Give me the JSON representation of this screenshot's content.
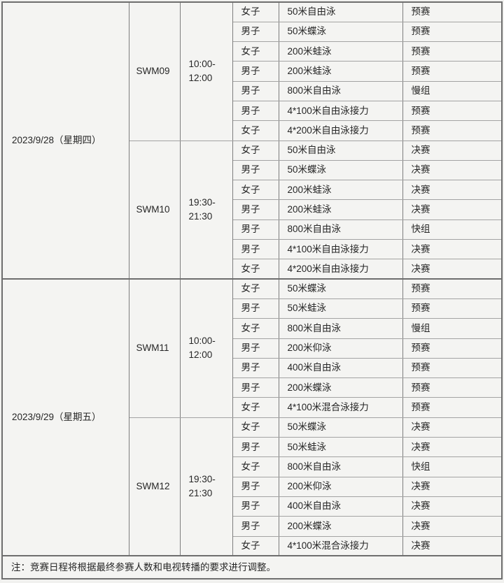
{
  "colors": {
    "page_background": "#f1f1ef",
    "cell_background": "#f4f4f2",
    "border_major": "#6e6e6e",
    "border_minor": "#a3a3a3",
    "text": "#262626"
  },
  "table": {
    "days": [
      {
        "date": "2023/9/28（星期四）",
        "sessions": [
          {
            "code": "SWM09",
            "time": "10:00-\n12:00",
            "events": [
              {
                "gender": "女子",
                "event": "50米自由泳",
                "round": "预赛"
              },
              {
                "gender": "男子",
                "event": "50米蝶泳",
                "round": "预赛"
              },
              {
                "gender": "女子",
                "event": "200米蛙泳",
                "round": "预赛"
              },
              {
                "gender": "男子",
                "event": "200米蛙泳",
                "round": "预赛"
              },
              {
                "gender": "男子",
                "event": "800米自由泳",
                "round": "慢组"
              },
              {
                "gender": "男子",
                "event": "4*100米自由泳接力",
                "round": "预赛"
              },
              {
                "gender": "女子",
                "event": "4*200米自由泳接力",
                "round": "预赛"
              }
            ]
          },
          {
            "code": "SWM10",
            "time": "19:30-\n21:30",
            "events": [
              {
                "gender": "女子",
                "event": "50米自由泳",
                "round": "决赛"
              },
              {
                "gender": "男子",
                "event": "50米蝶泳",
                "round": "决赛"
              },
              {
                "gender": "女子",
                "event": "200米蛙泳",
                "round": "决赛"
              },
              {
                "gender": "男子",
                "event": "200米蛙泳",
                "round": "决赛"
              },
              {
                "gender": "男子",
                "event": "800米自由泳",
                "round": "快组"
              },
              {
                "gender": "男子",
                "event": "4*100米自由泳接力",
                "round": "决赛"
              },
              {
                "gender": "女子",
                "event": "4*200米自由泳接力",
                "round": "决赛"
              }
            ]
          }
        ]
      },
      {
        "date": "2023/9/29（星期五）",
        "sessions": [
          {
            "code": "SWM11",
            "time": "10:00-\n12:00",
            "events": [
              {
                "gender": "女子",
                "event": "50米蝶泳",
                "round": "预赛"
              },
              {
                "gender": "男子",
                "event": "50米蛙泳",
                "round": "预赛"
              },
              {
                "gender": "女子",
                "event": "800米自由泳",
                "round": "慢组"
              },
              {
                "gender": "男子",
                "event": "200米仰泳",
                "round": "预赛"
              },
              {
                "gender": "男子",
                "event": "400米自由泳",
                "round": "预赛"
              },
              {
                "gender": "男子",
                "event": "200米蝶泳",
                "round": "预赛"
              },
              {
                "gender": "女子",
                "event": "4*100米混合泳接力",
                "round": "预赛"
              }
            ]
          },
          {
            "code": "SWM12",
            "time": "19:30-\n21:30",
            "events": [
              {
                "gender": "女子",
                "event": "50米蝶泳",
                "round": "决赛"
              },
              {
                "gender": "男子",
                "event": "50米蛙泳",
                "round": "决赛"
              },
              {
                "gender": "女子",
                "event": "800米自由泳",
                "round": "快组"
              },
              {
                "gender": "男子",
                "event": "200米仰泳",
                "round": "决赛"
              },
              {
                "gender": "男子",
                "event": "400米自由泳",
                "round": "决赛"
              },
              {
                "gender": "男子",
                "event": "200米蝶泳",
                "round": "决赛"
              },
              {
                "gender": "女子",
                "event": "4*100米混合泳接力",
                "round": "决赛"
              }
            ]
          }
        ]
      }
    ],
    "note": "注：竞赛日程将根据最终参赛人数和电视转播的要求进行调整。"
  }
}
